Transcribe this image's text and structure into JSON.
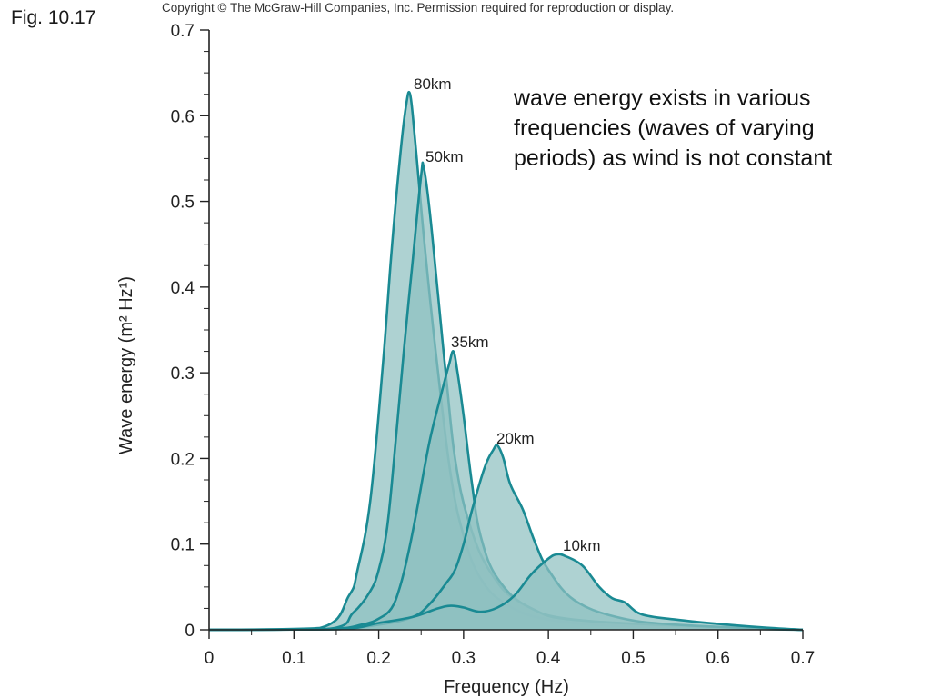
{
  "figure": {
    "label": "Fig. 10.17",
    "copyright": "Copyright © The McGraw-Hill Companies, Inc. Permission required for reproduction or display.",
    "note": "wave energy exists in various frequencies (waves of varying periods) as wind is not constant"
  },
  "chart_data": {
    "type": "area",
    "title": "",
    "xlabel": "Frequency (Hz)",
    "ylabel": "Wave energy (m² Hz¹)",
    "xlim": [
      0,
      0.7
    ],
    "ylim": [
      0,
      0.7
    ],
    "xticks": [
      "0",
      "0.1",
      "0.2",
      "0.3",
      "0.4",
      "0.5",
      "0.6",
      "0.7"
    ],
    "yticks": [
      "0",
      "0.1",
      "0.2",
      "0.3",
      "0.4",
      "0.5",
      "0.6",
      "0.7"
    ],
    "grid": false,
    "colors": {
      "fill": "#8fc1c0",
      "stroke": "#1a8a93"
    },
    "series": [
      {
        "name": "80km",
        "points": [
          [
            0,
            0
          ],
          [
            0.13,
            0.002
          ],
          [
            0.165,
            0.04
          ],
          [
            0.175,
            0.07
          ],
          [
            0.19,
            0.15
          ],
          [
            0.205,
            0.31
          ],
          [
            0.215,
            0.44
          ],
          [
            0.225,
            0.55
          ],
          [
            0.232,
            0.61
          ],
          [
            0.237,
            0.625
          ],
          [
            0.243,
            0.57
          ],
          [
            0.255,
            0.44
          ],
          [
            0.27,
            0.3
          ],
          [
            0.285,
            0.18
          ],
          [
            0.3,
            0.11
          ],
          [
            0.32,
            0.06
          ],
          [
            0.35,
            0.03
          ],
          [
            0.4,
            0.012
          ],
          [
            0.5,
            0.004
          ],
          [
            0.7,
            0
          ]
        ]
      },
      {
        "name": "50km",
        "points": [
          [
            0,
            0
          ],
          [
            0.14,
            0.001
          ],
          [
            0.17,
            0.02
          ],
          [
            0.19,
            0.045
          ],
          [
            0.2,
            0.07
          ],
          [
            0.21,
            0.12
          ],
          [
            0.22,
            0.22
          ],
          [
            0.23,
            0.33
          ],
          [
            0.24,
            0.43
          ],
          [
            0.25,
            0.53
          ],
          [
            0.253,
            0.54
          ],
          [
            0.26,
            0.49
          ],
          [
            0.27,
            0.39
          ],
          [
            0.28,
            0.29
          ],
          [
            0.29,
            0.2
          ],
          [
            0.305,
            0.13
          ],
          [
            0.33,
            0.07
          ],
          [
            0.37,
            0.03
          ],
          [
            0.45,
            0.01
          ],
          [
            0.7,
            0
          ]
        ]
      },
      {
        "name": "35km",
        "points": [
          [
            0,
            0
          ],
          [
            0.14,
            0.001
          ],
          [
            0.18,
            0.006
          ],
          [
            0.2,
            0.013
          ],
          [
            0.215,
            0.025
          ],
          [
            0.225,
            0.05
          ],
          [
            0.235,
            0.09
          ],
          [
            0.245,
            0.14
          ],
          [
            0.26,
            0.22
          ],
          [
            0.275,
            0.28
          ],
          [
            0.283,
            0.31
          ],
          [
            0.288,
            0.325
          ],
          [
            0.293,
            0.3
          ],
          [
            0.3,
            0.25
          ],
          [
            0.31,
            0.17
          ],
          [
            0.32,
            0.11
          ],
          [
            0.34,
            0.06
          ],
          [
            0.38,
            0.025
          ],
          [
            0.45,
            0.01
          ],
          [
            0.7,
            0
          ]
        ]
      },
      {
        "name": "20km",
        "points": [
          [
            0,
            0
          ],
          [
            0.14,
            0.0005
          ],
          [
            0.2,
            0.006
          ],
          [
            0.24,
            0.015
          ],
          [
            0.26,
            0.03
          ],
          [
            0.28,
            0.055
          ],
          [
            0.29,
            0.07
          ],
          [
            0.3,
            0.1
          ],
          [
            0.31,
            0.14
          ],
          [
            0.325,
            0.19
          ],
          [
            0.335,
            0.21
          ],
          [
            0.34,
            0.215
          ],
          [
            0.347,
            0.2
          ],
          [
            0.355,
            0.17
          ],
          [
            0.37,
            0.14
          ],
          [
            0.385,
            0.1
          ],
          [
            0.4,
            0.07
          ],
          [
            0.43,
            0.035
          ],
          [
            0.48,
            0.015
          ],
          [
            0.55,
            0.006
          ],
          [
            0.7,
            0
          ]
        ]
      },
      {
        "name": "10km",
        "points": [
          [
            0,
            0
          ],
          [
            0.15,
            0.0005
          ],
          [
            0.2,
            0.008
          ],
          [
            0.24,
            0.015
          ],
          [
            0.27,
            0.025
          ],
          [
            0.285,
            0.028
          ],
          [
            0.3,
            0.026
          ],
          [
            0.32,
            0.021
          ],
          [
            0.34,
            0.026
          ],
          [
            0.36,
            0.04
          ],
          [
            0.38,
            0.065
          ],
          [
            0.4,
            0.083
          ],
          [
            0.41,
            0.088
          ],
          [
            0.42,
            0.086
          ],
          [
            0.44,
            0.075
          ],
          [
            0.46,
            0.05
          ],
          [
            0.475,
            0.037
          ],
          [
            0.49,
            0.032
          ],
          [
            0.51,
            0.018
          ],
          [
            0.55,
            0.012
          ],
          [
            0.6,
            0.007
          ],
          [
            0.65,
            0.003
          ],
          [
            0.7,
            0
          ]
        ]
      }
    ]
  }
}
